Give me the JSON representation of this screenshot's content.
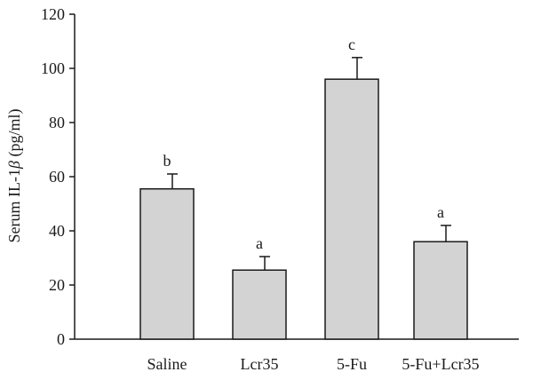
{
  "chart_data": {
    "type": "bar",
    "categories": [
      "Saline",
      "Lcr35",
      "5-Fu",
      "5-Fu+Lcr35"
    ],
    "values": [
      55.5,
      25.5,
      96,
      36
    ],
    "errors": [
      5.5,
      5,
      8,
      6
    ],
    "significance": [
      "b",
      "a",
      "c",
      "a"
    ],
    "ylabel_prefix": "Serum IL-1",
    "ylabel_symbol": "β",
    "ylabel_suffix": " (pg/ml)",
    "ylim": [
      0,
      120
    ],
    "yticks": [
      0,
      20,
      40,
      60,
      80,
      100,
      120
    ],
    "grid": false,
    "bar_color": "#d3d3d3"
  }
}
